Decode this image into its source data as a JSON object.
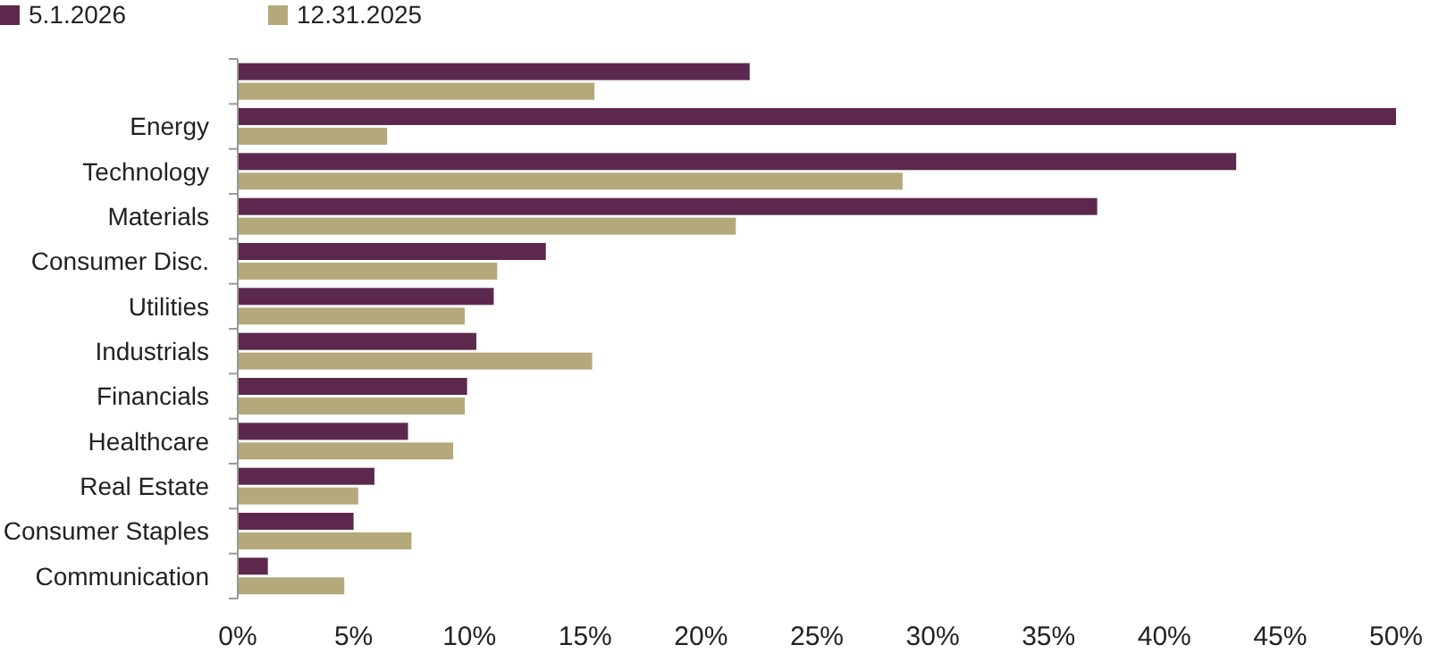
{
  "chart_data": {
    "type": "bar",
    "orientation": "horizontal",
    "categories": [
      null,
      "Energy",
      "Technology",
      "Materials",
      "Consumer Disc.",
      "Utilities",
      "Industrials",
      "Financials",
      "Healthcare",
      "Real Estate",
      "Consumer Staples",
      "Communication"
    ],
    "series": [
      {
        "name": "5.1.2026",
        "color": "#5c284d",
        "values": [
          22.1,
          50.0,
          43.1,
          37.1,
          13.3,
          11.05,
          10.3,
          9.9,
          7.35,
          5.9,
          5.0,
          1.3
        ]
      },
      {
        "name": "12.31.2025",
        "color": "#b5a97c",
        "values": [
          15.4,
          6.45,
          28.7,
          21.5,
          11.2,
          9.8,
          15.3,
          9.8,
          9.3,
          5.2,
          7.5,
          4.6
        ]
      }
    ],
    "xlim": [
      0,
      50
    ],
    "xticks": [
      {
        "value": 0,
        "label": "0%"
      },
      {
        "value": 5,
        "label": "5%"
      },
      {
        "value": 10,
        "label": "10%"
      },
      {
        "value": 15,
        "label": "15%"
      },
      {
        "value": 20,
        "label": "20%"
      },
      {
        "value": 25,
        "label": "25%"
      },
      {
        "value": 30,
        "label": "30%"
      },
      {
        "value": 35,
        "label": "35%"
      },
      {
        "value": 40,
        "label": "40%"
      },
      {
        "value": 45,
        "label": "45%"
      },
      {
        "value": 50,
        "label": "50%"
      }
    ],
    "grid": false,
    "legend": "top left"
  }
}
